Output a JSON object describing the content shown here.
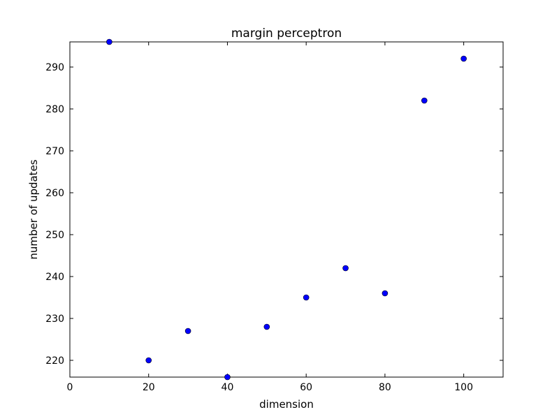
{
  "chart_data": {
    "type": "scatter",
    "title": "margin perceptron",
    "xlabel": "dimension",
    "ylabel": "number of updates",
    "xlim": [
      0,
      110
    ],
    "ylim": [
      216,
      296
    ],
    "x_ticks": [
      0,
      20,
      40,
      60,
      80,
      100
    ],
    "y_ticks": [
      220,
      230,
      240,
      250,
      260,
      270,
      280,
      290
    ],
    "grid": false,
    "legend": "none",
    "marker_color": "#0000ff",
    "series": [
      {
        "x": [
          10,
          20,
          30,
          40,
          50,
          60,
          70,
          80,
          90,
          100
        ],
        "y": [
          296,
          220,
          227,
          216,
          228,
          235,
          242,
          236,
          282,
          292
        ]
      }
    ]
  }
}
